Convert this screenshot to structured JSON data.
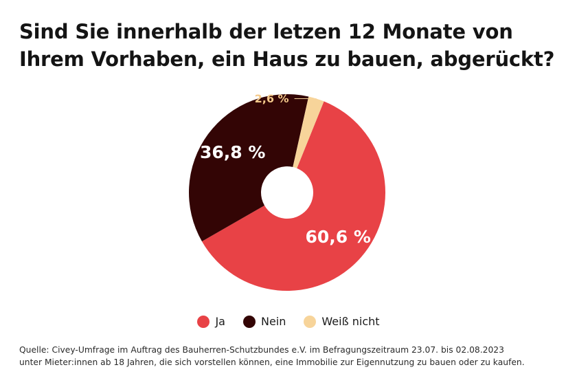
{
  "title": {
    "line1": "Sind Sie innerhalb der letzen 12 Monate von",
    "line2": "Ihrem Vorhaben, ein Haus zu bauen, abgerückt?"
  },
  "chart_data": {
    "type": "pie",
    "style": "donut",
    "title": "Sind Sie innerhalb der letzen 12 Monate von Ihrem Vorhaben, ein Haus zu bauen, abgerückt?",
    "categories": [
      "Ja",
      "Nein",
      "Weiß nicht"
    ],
    "values": [
      60.6,
      36.8,
      2.6
    ],
    "labels": [
      "60,6 %",
      "36,8 %",
      "2,6 %"
    ],
    "colors": [
      "#e84246",
      "#330505",
      "#f7d49a"
    ],
    "label_colors": [
      "#ffffff",
      "#ffffff",
      "#f4c98a"
    ],
    "legend_position": "bottom"
  },
  "legend": [
    {
      "label": "Ja",
      "color": "#e84246"
    },
    {
      "label": "Nein",
      "color": "#330505"
    },
    {
      "label": "Weiß nicht",
      "color": "#f7d49a"
    }
  ],
  "source": {
    "line1": "Quelle: Civey-Umfrage im Auftrag des Bauherren-Schutzbundes e.V. im Befragungszeitraum 23.07. bis 02.08.2023",
    "line2": "unter Mieter:innen ab 18 Jahren, die sich vorstellen können, eine Immobilie zur Eigennutzung zu bauen oder zu kaufen."
  }
}
